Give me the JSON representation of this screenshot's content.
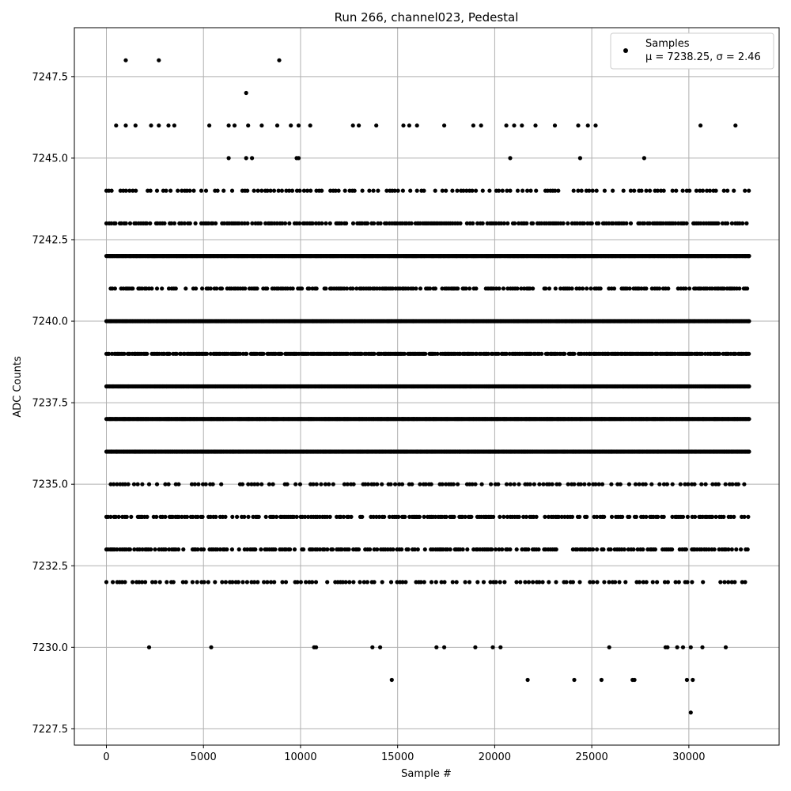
{
  "chart_data": {
    "type": "scatter",
    "title": "Run 266, channel023, Pedestal",
    "xlabel": "Sample #",
    "ylabel": "ADC Counts",
    "xlim": [
      -1650,
      34650
    ],
    "ylim": [
      7227.0,
      7249.0
    ],
    "xticks": [
      0,
      5000,
      10000,
      15000,
      20000,
      25000,
      30000
    ],
    "xtick_labels": [
      "0",
      "5000",
      "10000",
      "15000",
      "20000",
      "25000",
      "30000"
    ],
    "yticks": [
      7227.5,
      7230.0,
      7232.5,
      7235.0,
      7237.5,
      7240.0,
      7242.5,
      7245.0,
      7247.5
    ],
    "ytick_labels": [
      "7227.5",
      "7230.0",
      "7232.5",
      "7235.0",
      "7237.5",
      "7240.0",
      "7242.5",
      "7245.0",
      "7247.5"
    ],
    "grid": true,
    "legend_position": "top-right",
    "marker_color": "#000000",
    "series": [
      {
        "name": "Samples",
        "x_range": [
          0,
          33100
        ],
        "dense_rows": [
          {
            "y": 7236,
            "coverage": "continuous"
          },
          {
            "y": 7237,
            "coverage": "continuous"
          },
          {
            "y": 7238,
            "coverage": "continuous"
          },
          {
            "y": 7240,
            "coverage": "continuous"
          },
          {
            "y": 7242,
            "coverage": "continuous"
          },
          {
            "y": 7239,
            "coverage": "near-continuous"
          },
          {
            "y": 7234,
            "coverage": "frequent"
          },
          {
            "y": 7233,
            "coverage": "frequent"
          },
          {
            "y": 7243,
            "coverage": "frequent"
          },
          {
            "y": 7241,
            "coverage": "frequent"
          },
          {
            "y": 7244,
            "coverage": "moderate"
          },
          {
            "y": 7235,
            "coverage": "moderate"
          },
          {
            "y": 7232,
            "coverage": "moderate"
          }
        ],
        "sparse_points": [
          [
            1000,
            7248
          ],
          [
            2700,
            7248
          ],
          [
            8900,
            7248
          ],
          [
            7200,
            7247
          ],
          [
            500,
            7246
          ],
          [
            1000,
            7246
          ],
          [
            1500,
            7246
          ],
          [
            2300,
            7246
          ],
          [
            2700,
            7246
          ],
          [
            3200,
            7246
          ],
          [
            3500,
            7246
          ],
          [
            5300,
            7246
          ],
          [
            6300,
            7246
          ],
          [
            6600,
            7246
          ],
          [
            7300,
            7246
          ],
          [
            8000,
            7246
          ],
          [
            8800,
            7246
          ],
          [
            9500,
            7246
          ],
          [
            9900,
            7246
          ],
          [
            10500,
            7246
          ],
          [
            12700,
            7246
          ],
          [
            13000,
            7246
          ],
          [
            13900,
            7246
          ],
          [
            15300,
            7246
          ],
          [
            15600,
            7246
          ],
          [
            16000,
            7246
          ],
          [
            17400,
            7246
          ],
          [
            18900,
            7246
          ],
          [
            19300,
            7246
          ],
          [
            20600,
            7246
          ],
          [
            21000,
            7246
          ],
          [
            21400,
            7246
          ],
          [
            22100,
            7246
          ],
          [
            23100,
            7246
          ],
          [
            24300,
            7246
          ],
          [
            24800,
            7246
          ],
          [
            25200,
            7246
          ],
          [
            30600,
            7246
          ],
          [
            32400,
            7246
          ],
          [
            6300,
            7245
          ],
          [
            7200,
            7245
          ],
          [
            7500,
            7245
          ],
          [
            9800,
            7245
          ],
          [
            9900,
            7245
          ],
          [
            20800,
            7245
          ],
          [
            24400,
            7245
          ],
          [
            27700,
            7245
          ],
          [
            2200,
            7230
          ],
          [
            5400,
            7230
          ],
          [
            10700,
            7230
          ],
          [
            10800,
            7230
          ],
          [
            13700,
            7230
          ],
          [
            14100,
            7230
          ],
          [
            17000,
            7230
          ],
          [
            17400,
            7230
          ],
          [
            19000,
            7230
          ],
          [
            19900,
            7230
          ],
          [
            20300,
            7230
          ],
          [
            25900,
            7230
          ],
          [
            28800,
            7230
          ],
          [
            28900,
            7230
          ],
          [
            29400,
            7230
          ],
          [
            29700,
            7230
          ],
          [
            30100,
            7230
          ],
          [
            30700,
            7230
          ],
          [
            31900,
            7230
          ],
          [
            14700,
            7229
          ],
          [
            21700,
            7229
          ],
          [
            24100,
            7229
          ],
          [
            25500,
            7229
          ],
          [
            27100,
            7229
          ],
          [
            27200,
            7229
          ],
          [
            29900,
            7229
          ],
          [
            30200,
            7229
          ],
          [
            30100,
            7228
          ]
        ]
      }
    ],
    "legend": {
      "label": "Samples",
      "stats": "μ = 7238.25, σ = 2.46"
    }
  }
}
